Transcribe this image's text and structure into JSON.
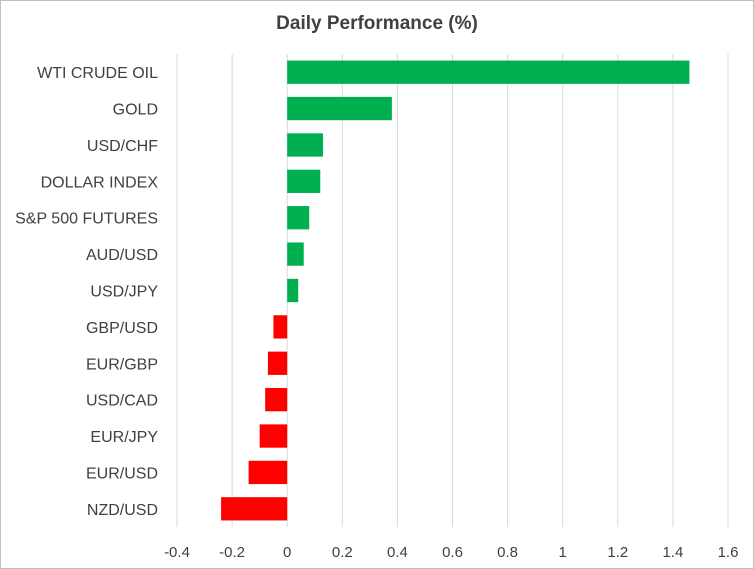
{
  "chart_data": {
    "type": "bar",
    "orientation": "horizontal",
    "title": "Daily Performance (%)",
    "xlabel": "",
    "ylabel": "",
    "xlim": [
      -0.4,
      1.6
    ],
    "xticks": [
      "-0.4",
      "-0.2",
      "0",
      "0.2",
      "0.4",
      "0.6",
      "0.8",
      "1",
      "1.2",
      "1.4",
      "1.6"
    ],
    "grid": true,
    "legend": "none",
    "positive_color": "#00b050",
    "negative_color": "#ff0000",
    "categories": [
      "WTI CRUDE OIL",
      "GOLD",
      "USD/CHF",
      "DOLLAR INDEX",
      "S&P 500 FUTURES",
      "AUD/USD",
      "USD/JPY",
      "GBP/USD",
      "EUR/GBP",
      "USD/CAD",
      "EUR/JPY",
      "EUR/USD",
      "NZD/USD"
    ],
    "values": [
      1.46,
      0.38,
      0.13,
      0.12,
      0.08,
      0.06,
      0.04,
      -0.05,
      -0.07,
      -0.08,
      -0.1,
      -0.14,
      -0.24
    ]
  }
}
